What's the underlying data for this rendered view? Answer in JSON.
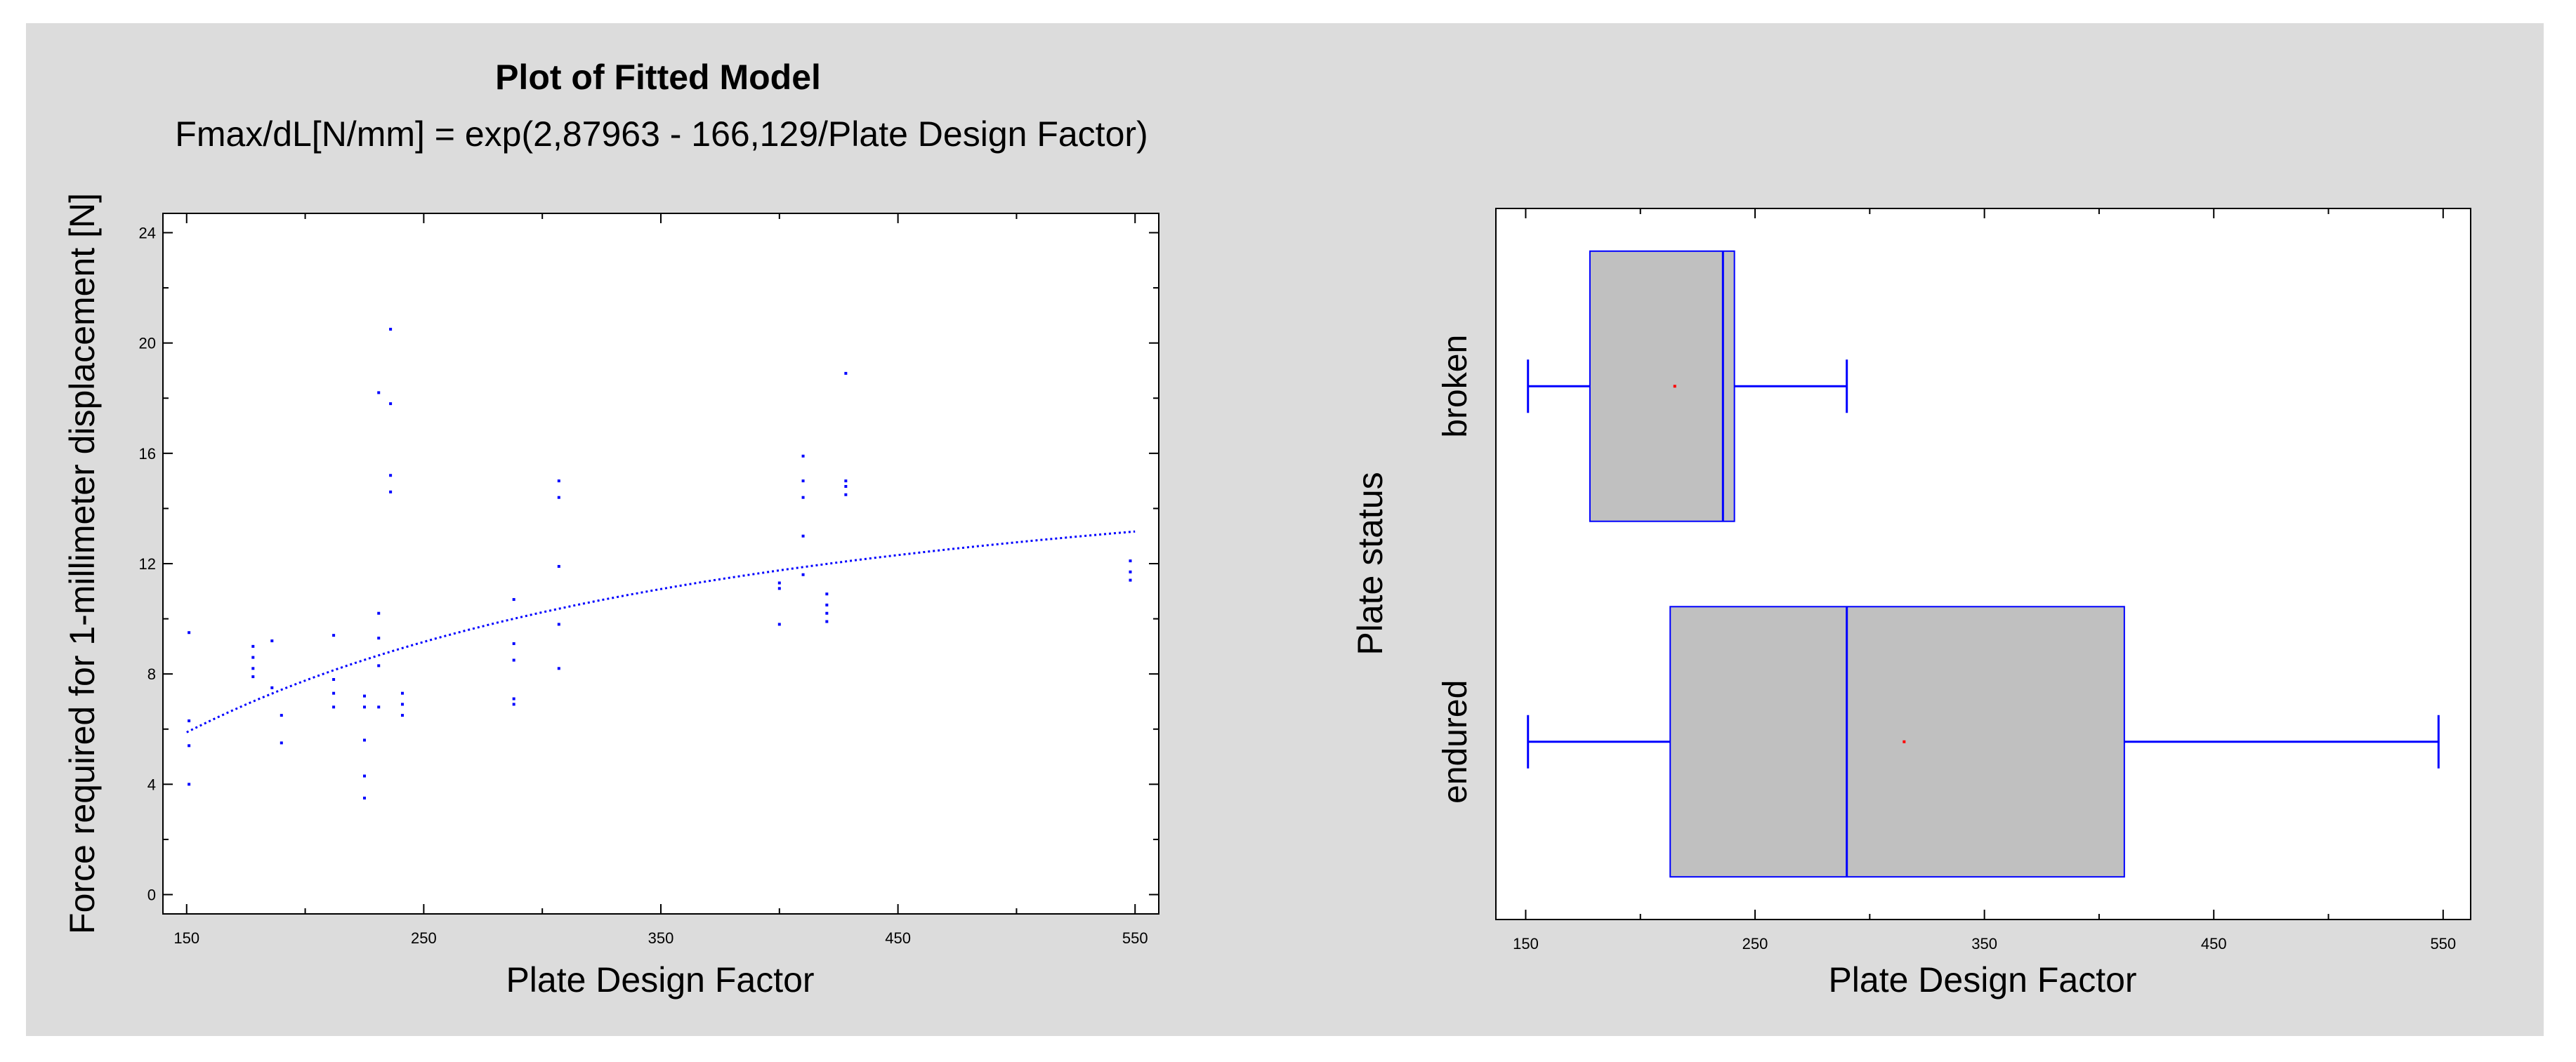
{
  "chart_data": [
    {
      "type": "scatter",
      "title": "Plot of Fitted Model",
      "subtitle": "Fmax/dL[N/mm] = exp(2,87963 - 166,129/Plate Design Factor)",
      "xlabel": "Plate Design Factor",
      "ylabel": "Force required for 1-millimeter displacement [N]",
      "xlim": [
        140,
        560
      ],
      "ylim": [
        -0.7,
        24.7
      ],
      "xticks": [
        150,
        250,
        350,
        450,
        550
      ],
      "yticks": [
        0,
        4,
        8,
        12,
        16,
        20,
        24
      ],
      "grid": false,
      "fit": {
        "intercept": 2.87963,
        "slope": -166.129,
        "x_range": [
          150,
          550
        ]
      },
      "series": [
        {
          "points": [
            [
              151,
              9.5
            ],
            [
              151,
              6.3
            ],
            [
              151,
              5.4
            ],
            [
              151,
              4.0
            ],
            [
              178,
              9.0
            ],
            [
              178,
              8.6
            ],
            [
              178,
              8.2
            ],
            [
              178,
              7.9
            ],
            [
              186,
              9.2
            ],
            [
              186,
              7.5
            ],
            [
              190,
              6.5
            ],
            [
              190,
              5.5
            ],
            [
              212,
              9.4
            ],
            [
              212,
              7.8
            ],
            [
              212,
              7.3
            ],
            [
              212,
              6.8
            ],
            [
              225,
              7.2
            ],
            [
              225,
              6.8
            ],
            [
              225,
              5.6
            ],
            [
              225,
              4.3
            ],
            [
              225,
              3.5
            ],
            [
              231,
              18.2
            ],
            [
              231,
              10.2
            ],
            [
              231,
              9.3
            ],
            [
              231,
              8.3
            ],
            [
              231,
              6.8
            ],
            [
              236,
              20.5
            ],
            [
              236,
              17.8
            ],
            [
              236,
              15.2
            ],
            [
              236,
              14.6
            ],
            [
              241,
              7.3
            ],
            [
              241,
              6.9
            ],
            [
              241,
              6.5
            ],
            [
              288,
              10.7
            ],
            [
              288,
              9.1
            ],
            [
              288,
              8.5
            ],
            [
              288,
              7.1
            ],
            [
              288,
              6.9
            ],
            [
              307,
              15.0
            ],
            [
              307,
              14.4
            ],
            [
              307,
              11.9
            ],
            [
              307,
              9.8
            ],
            [
              307,
              8.2
            ],
            [
              400,
              11.3
            ],
            [
              400,
              11.1
            ],
            [
              400,
              9.8
            ],
            [
              410,
              15.9
            ],
            [
              410,
              15.0
            ],
            [
              410,
              14.4
            ],
            [
              410,
              13.0
            ],
            [
              410,
              11.6
            ],
            [
              420,
              10.9
            ],
            [
              420,
              10.5
            ],
            [
              420,
              10.2
            ],
            [
              420,
              9.9
            ],
            [
              428,
              18.9
            ],
            [
              428,
              15.0
            ],
            [
              428,
              14.8
            ],
            [
              428,
              14.5
            ],
            [
              548,
              12.1
            ],
            [
              548,
              11.7
            ],
            [
              548,
              11.4
            ]
          ]
        }
      ]
    },
    {
      "type": "box",
      "xlabel": "Plate Design Factor",
      "ylabel": "Plate status",
      "xlim": [
        137,
        562
      ],
      "xticks": [
        150,
        250,
        350,
        450,
        550
      ],
      "grid": false,
      "categories": [
        "broken",
        "endured"
      ],
      "boxes": [
        {
          "category": "broken",
          "min": 151,
          "q1": 178,
          "median": 236,
          "q3": 241,
          "max": 290,
          "mean": 215
        },
        {
          "category": "endured",
          "min": 151,
          "q1": 213,
          "median": 290,
          "q3": 411,
          "max": 548,
          "mean": 315
        }
      ]
    }
  ],
  "colors": {
    "points": "#0000ff",
    "fit": "#0000ff",
    "box_fill": "#c0c0c0",
    "box_stroke": "#0000ff",
    "mean_marker": "#ff0000",
    "panel": "#dcdcdc"
  }
}
